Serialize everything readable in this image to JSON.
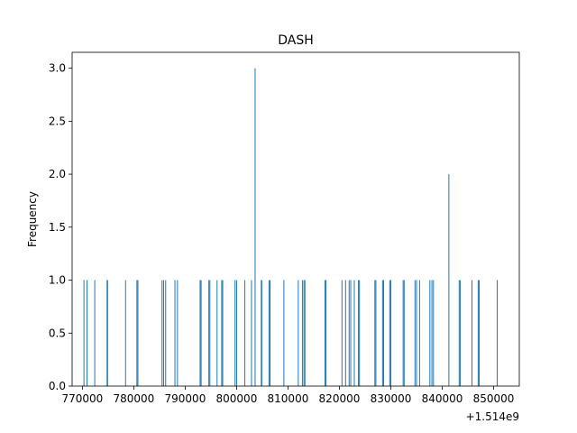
{
  "chart_data": {
    "type": "bar",
    "title": "DASH",
    "xlabel": "",
    "ylabel": "Frequency",
    "x_offset_label": "+1.514e9",
    "xlim": [
      768000,
      855000
    ],
    "ylim": [
      0,
      3.15
    ],
    "x_ticks": [
      770000,
      780000,
      790000,
      800000,
      810000,
      820000,
      830000,
      840000,
      850000
    ],
    "x_tick_labels": [
      "770000",
      "780000",
      "790000",
      "800000",
      "810000",
      "820000",
      "830000",
      "840000",
      "850000"
    ],
    "y_ticks": [
      0,
      0.5,
      1.0,
      1.5,
      2.0,
      2.5,
      3.0
    ],
    "y_tick_labels": [
      "0.0",
      "0.5",
      "1.0",
      "1.5",
      "2.0",
      "2.5",
      "3.0"
    ],
    "bar_color": "#1f77b4",
    "grid": false,
    "points": [
      {
        "x": 770300,
        "y": 1
      },
      {
        "x": 770900,
        "y": 1
      },
      {
        "x": 772400,
        "y": 1
      },
      {
        "x": 774800,
        "y": 1
      },
      {
        "x": 774900,
        "y": 1
      },
      {
        "x": 778400,
        "y": 1
      },
      {
        "x": 780600,
        "y": 1
      },
      {
        "x": 780800,
        "y": 1
      },
      {
        "x": 785500,
        "y": 1
      },
      {
        "x": 785800,
        "y": 1
      },
      {
        "x": 786200,
        "y": 1
      },
      {
        "x": 788000,
        "y": 1
      },
      {
        "x": 788500,
        "y": 1
      },
      {
        "x": 792900,
        "y": 1
      },
      {
        "x": 793100,
        "y": 1
      },
      {
        "x": 794600,
        "y": 1
      },
      {
        "x": 794800,
        "y": 1
      },
      {
        "x": 796200,
        "y": 1
      },
      {
        "x": 797100,
        "y": 1
      },
      {
        "x": 797300,
        "y": 1
      },
      {
        "x": 799700,
        "y": 1
      },
      {
        "x": 800000,
        "y": 1
      },
      {
        "x": 801600,
        "y": 1
      },
      {
        "x": 802900,
        "y": 1
      },
      {
        "x": 803600,
        "y": 3
      },
      {
        "x": 804800,
        "y": 1
      },
      {
        "x": 804900,
        "y": 1
      },
      {
        "x": 806300,
        "y": 1
      },
      {
        "x": 806500,
        "y": 1
      },
      {
        "x": 809200,
        "y": 1
      },
      {
        "x": 812000,
        "y": 1
      },
      {
        "x": 812800,
        "y": 1
      },
      {
        "x": 813100,
        "y": 1
      },
      {
        "x": 813300,
        "y": 1
      },
      {
        "x": 817200,
        "y": 1
      },
      {
        "x": 817400,
        "y": 1
      },
      {
        "x": 820500,
        "y": 1
      },
      {
        "x": 821200,
        "y": 1
      },
      {
        "x": 821900,
        "y": 1
      },
      {
        "x": 822200,
        "y": 1
      },
      {
        "x": 822900,
        "y": 1
      },
      {
        "x": 823700,
        "y": 1
      },
      {
        "x": 823900,
        "y": 1
      },
      {
        "x": 826900,
        "y": 1
      },
      {
        "x": 827100,
        "y": 1
      },
      {
        "x": 828400,
        "y": 1
      },
      {
        "x": 828600,
        "y": 1
      },
      {
        "x": 829800,
        "y": 1
      },
      {
        "x": 830000,
        "y": 1
      },
      {
        "x": 832400,
        "y": 1
      },
      {
        "x": 832600,
        "y": 1
      },
      {
        "x": 834700,
        "y": 1
      },
      {
        "x": 835000,
        "y": 1
      },
      {
        "x": 835600,
        "y": 1
      },
      {
        "x": 837600,
        "y": 1
      },
      {
        "x": 838000,
        "y": 1
      },
      {
        "x": 838300,
        "y": 1
      },
      {
        "x": 841300,
        "y": 2
      },
      {
        "x": 843300,
        "y": 1
      },
      {
        "x": 843500,
        "y": 1
      },
      {
        "x": 845800,
        "y": 1
      },
      {
        "x": 847000,
        "y": 1
      },
      {
        "x": 847200,
        "y": 1
      },
      {
        "x": 850700,
        "y": 1
      }
    ]
  }
}
